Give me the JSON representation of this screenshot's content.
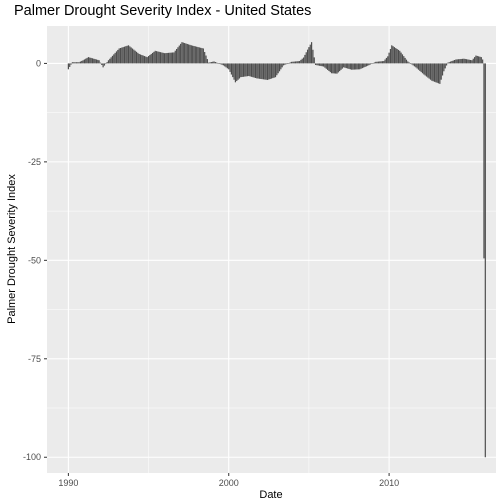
{
  "chart_data": {
    "type": "bar",
    "title": "Palmer Drought Severity Index - United States",
    "xlabel": "Date",
    "ylabel": "Palmer Drought Severity Index",
    "x_axis": {
      "scale": "date",
      "range": [
        "1988-09-01",
        "2016-09-01"
      ],
      "ticks": [
        "1990",
        "2000",
        "2010"
      ]
    },
    "y_axis": {
      "range": [
        -104,
        9.5
      ],
      "ticks": [
        "0",
        "-25",
        "-50",
        "-75",
        "-100"
      ]
    },
    "grid": true,
    "colors": {
      "panel": "#ebebeb",
      "grid": "#ffffff",
      "bar": "#4d4d4d"
    },
    "series": [
      {
        "monthly_keyframes": [
          [
            "1990-01-01",
            -1.5
          ],
          [
            "1990-04-01",
            0.3
          ],
          [
            "1990-09-01",
            0.3
          ],
          [
            "1990-12-01",
            0.8
          ],
          [
            "1991-04-01",
            1.6
          ],
          [
            "1991-12-01",
            0.8
          ],
          [
            "1992-03-01",
            -1.0
          ],
          [
            "1992-07-01",
            0.8
          ],
          [
            "1993-03-01",
            3.8
          ],
          [
            "1993-10-01",
            4.6
          ],
          [
            "1994-06-01",
            2.4
          ],
          [
            "1994-12-01",
            1.6
          ],
          [
            "1995-06-01",
            3.2
          ],
          [
            "1996-01-01",
            2.6
          ],
          [
            "1996-08-01",
            2.8
          ],
          [
            "1997-02-01",
            5.4
          ],
          [
            "1997-09-01",
            4.6
          ],
          [
            "1998-06-01",
            3.8
          ],
          [
            "1998-10-01",
            0.2
          ],
          [
            "1999-02-01",
            0.5
          ],
          [
            "1999-09-01",
            -0.5
          ],
          [
            "2000-01-01",
            -1.5
          ],
          [
            "2000-06-01",
            -4.8
          ],
          [
            "2000-10-01",
            -3.5
          ],
          [
            "2001-04-01",
            -3.2
          ],
          [
            "2001-10-01",
            -3.8
          ],
          [
            "2002-06-01",
            -4.2
          ],
          [
            "2002-12-01",
            -3.5
          ],
          [
            "2003-06-01",
            -0.5
          ],
          [
            "2003-12-01",
            0.4
          ],
          [
            "2004-06-01",
            0.6
          ],
          [
            "2004-09-01",
            1.5
          ],
          [
            "2004-12-01",
            3.5
          ],
          [
            "2005-03-01",
            5.4
          ],
          [
            "2005-06-01",
            -0.4
          ],
          [
            "2005-12-01",
            -0.8
          ],
          [
            "2006-06-01",
            -2.5
          ],
          [
            "2006-10-01",
            -2.6
          ],
          [
            "2007-03-01",
            -1.0
          ],
          [
            "2007-09-01",
            -1.6
          ],
          [
            "2008-03-01",
            -1.5
          ],
          [
            "2008-09-01",
            -0.6
          ],
          [
            "2009-03-01",
            0.4
          ],
          [
            "2009-09-01",
            0.6
          ],
          [
            "2009-12-01",
            1.8
          ],
          [
            "2010-03-01",
            4.6
          ],
          [
            "2010-09-01",
            3.2
          ],
          [
            "2011-03-01",
            0.5
          ],
          [
            "2011-09-01",
            -1.0
          ],
          [
            "2012-03-01",
            -2.8
          ],
          [
            "2012-09-01",
            -4.4
          ],
          [
            "2013-03-01",
            -5.2
          ],
          [
            "2013-06-01",
            -2.0
          ],
          [
            "2013-09-01",
            0.2
          ],
          [
            "2014-03-01",
            1.0
          ],
          [
            "2014-09-01",
            1.2
          ],
          [
            "2015-03-01",
            0.8
          ],
          [
            "2015-06-01",
            2.0
          ],
          [
            "2015-10-01",
            1.6
          ],
          [
            "2015-11-01",
            1.0
          ],
          [
            "2016-01-01",
            -100
          ]
        ]
      }
    ]
  }
}
